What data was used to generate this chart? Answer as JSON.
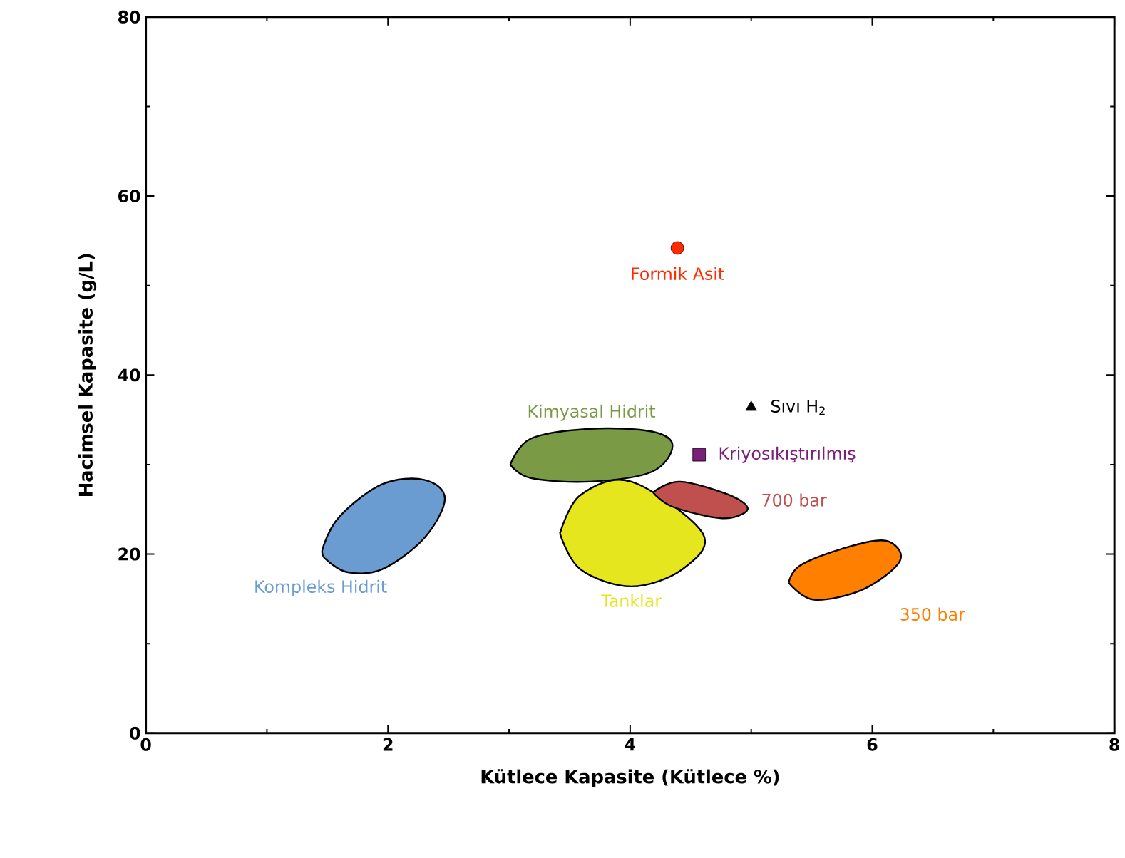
{
  "chart_data": {
    "type": "scatter",
    "xlabel": "Kütlece Kapasite (Kütlece %)",
    "ylabel": "Hacimsel Kapasite (g/L)",
    "xlim": [
      0,
      8
    ],
    "xticks": [
      0,
      2,
      4,
      6,
      8
    ],
    "ylim": [
      0,
      80
    ],
    "yticks": [
      0,
      20,
      40,
      60,
      80
    ],
    "grid": false,
    "series": [
      {
        "name": "Kompleks Hidrit",
        "type": "area",
        "color": "#6a9bd1",
        "x": [
          1.49,
          1.66,
          1.95,
          2.3,
          2.47,
          2.3,
          1.95,
          1.6,
          1.46
        ],
        "values": [
          19.4,
          18.0,
          18.3,
          21.8,
          26.2,
          28.3,
          27.8,
          24.2,
          20.6
        ]
      },
      {
        "name": "Kimyasal Hidrit",
        "type": "area",
        "color": "#7a9a45",
        "x": [
          3.01,
          3.18,
          3.67,
          4.18,
          4.35,
          4.18,
          3.67,
          3.18
        ],
        "values": [
          30.0,
          28.5,
          28.1,
          29.2,
          32.1,
          33.7,
          34.0,
          32.9
        ]
      },
      {
        "name": "Tanklar",
        "type": "area",
        "color": "#e6e61e",
        "x": [
          3.42,
          3.59,
          4.01,
          4.43,
          4.6,
          4.01,
          3.59
        ],
        "values": [
          22.3,
          18.3,
          16.4,
          18.3,
          22.3,
          28.1,
          26.6
        ]
      },
      {
        "name": "700 bar",
        "type": "area",
        "color": "#c0504d",
        "x": [
          4.19,
          4.35,
          4.76,
          4.97,
          4.82,
          4.41
        ],
        "values": [
          26.9,
          25.3,
          24.0,
          25.0,
          26.6,
          28.1
        ]
      },
      {
        "name": "350 bar",
        "type": "area",
        "color": "#ff8000",
        "x": [
          5.31,
          5.52,
          5.93,
          6.23,
          6.11,
          5.75,
          5.4
        ],
        "values": [
          16.8,
          14.9,
          16.1,
          19.3,
          21.5,
          20.6,
          18.7
        ]
      },
      {
        "name": "Formik Asit",
        "marker": "circle",
        "color": "#ff2a00",
        "x": [
          4.39
        ],
        "values": [
          54.2
        ]
      },
      {
        "name": "Sıvı H$_{2}$",
        "marker": "triangle",
        "color": "#000000",
        "x": [
          5.0
        ],
        "values": [
          36.4
        ]
      },
      {
        "name": "Kriyosıkıştırılmış",
        "marker": "square",
        "color": "#7a1f7a",
        "x": [
          4.57
        ],
        "values": [
          31.1
        ]
      }
    ]
  }
}
